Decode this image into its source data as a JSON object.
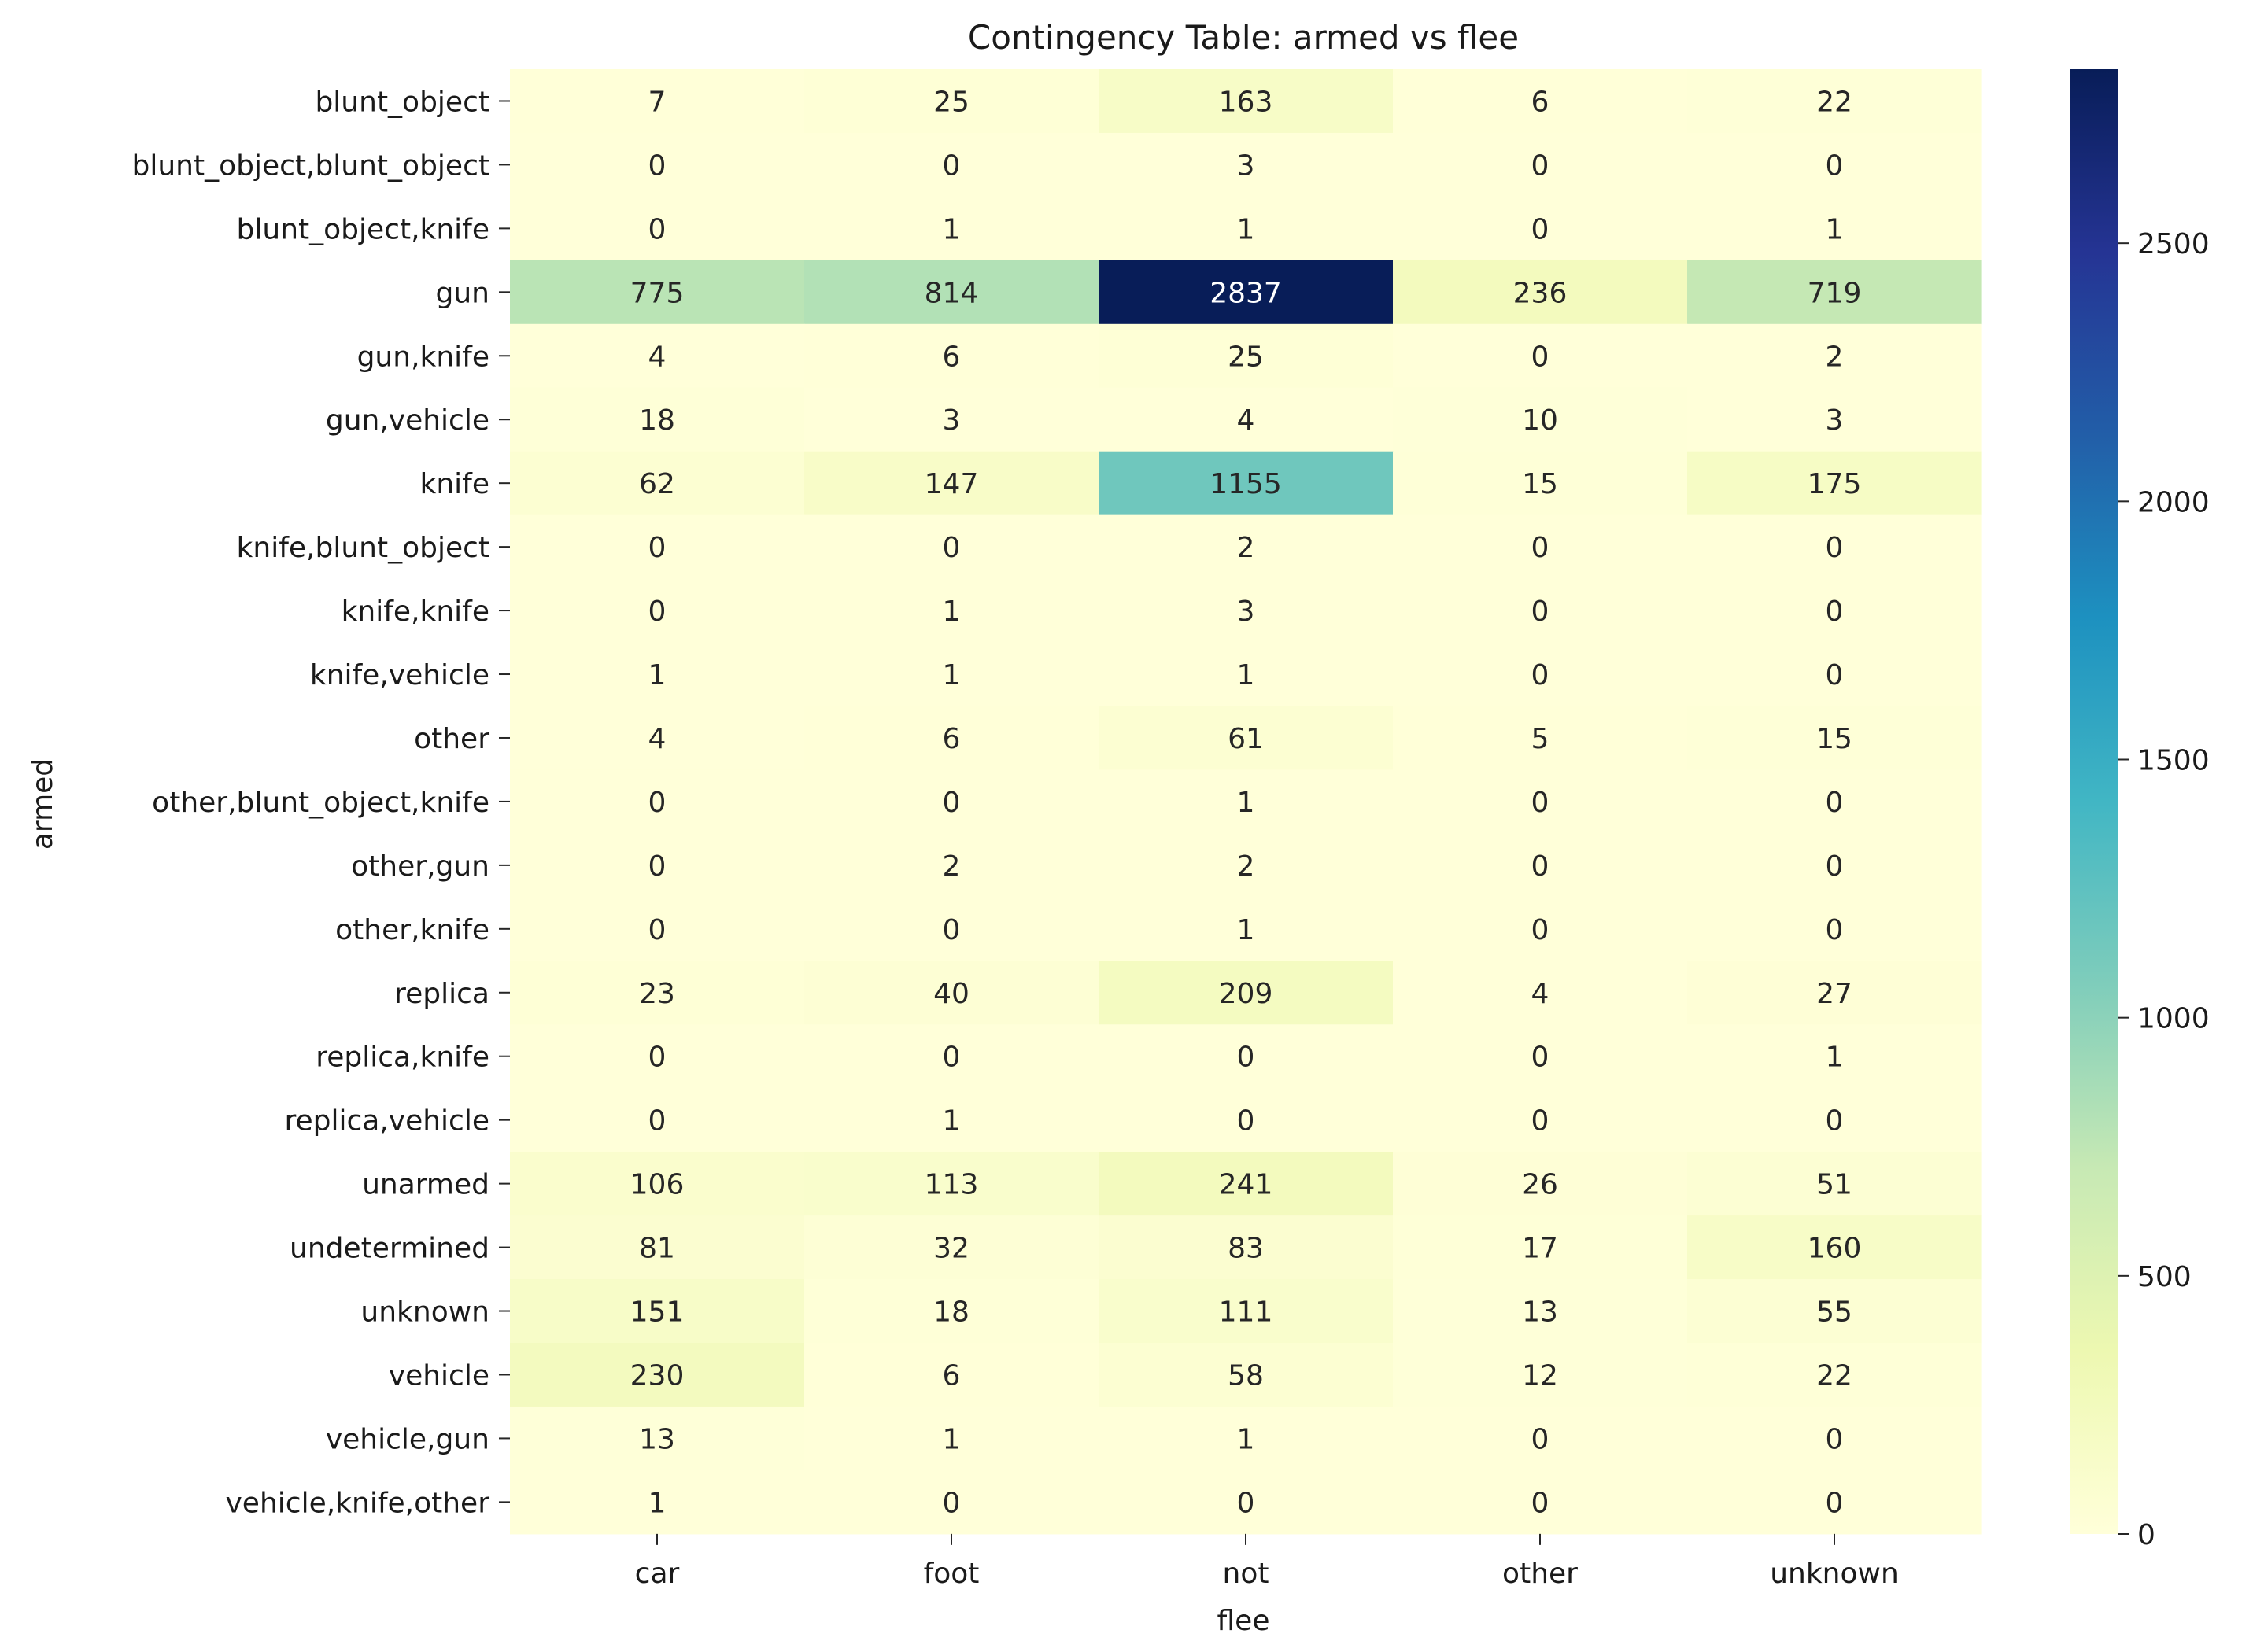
{
  "chart_data": {
    "type": "heatmap",
    "title": "Contingency Table: armed vs flee",
    "xlabel": "flee",
    "ylabel": "armed",
    "columns": [
      "car",
      "foot",
      "not",
      "other",
      "unknown"
    ],
    "rows": [
      "blunt_object",
      "blunt_object,blunt_object",
      "blunt_object,knife",
      "gun",
      "gun,knife",
      "gun,vehicle",
      "knife",
      "knife,blunt_object",
      "knife,knife",
      "knife,vehicle",
      "other",
      "other,blunt_object,knife",
      "other,gun",
      "other,knife",
      "replica",
      "replica,knife",
      "replica,vehicle",
      "unarmed",
      "undetermined",
      "unknown",
      "vehicle",
      "vehicle,gun",
      "vehicle,knife,other"
    ],
    "values": [
      [
        7,
        25,
        163,
        6,
        22
      ],
      [
        0,
        0,
        3,
        0,
        0
      ],
      [
        0,
        1,
        1,
        0,
        1
      ],
      [
        775,
        814,
        2837,
        236,
        719
      ],
      [
        4,
        6,
        25,
        0,
        2
      ],
      [
        18,
        3,
        4,
        10,
        3
      ],
      [
        62,
        147,
        1155,
        15,
        175
      ],
      [
        0,
        0,
        2,
        0,
        0
      ],
      [
        0,
        1,
        3,
        0,
        0
      ],
      [
        1,
        1,
        1,
        0,
        0
      ],
      [
        4,
        6,
        61,
        5,
        15
      ],
      [
        0,
        0,
        1,
        0,
        0
      ],
      [
        0,
        2,
        2,
        0,
        0
      ],
      [
        0,
        0,
        1,
        0,
        0
      ],
      [
        23,
        40,
        209,
        4,
        27
      ],
      [
        0,
        0,
        0,
        0,
        1
      ],
      [
        0,
        1,
        0,
        0,
        0
      ],
      [
        106,
        113,
        241,
        26,
        51
      ],
      [
        81,
        32,
        83,
        17,
        160
      ],
      [
        151,
        18,
        111,
        13,
        55
      ],
      [
        230,
        6,
        58,
        12,
        22
      ],
      [
        13,
        1,
        1,
        0,
        0
      ],
      [
        1,
        0,
        0,
        0,
        0
      ]
    ],
    "colormap": "YlGnBu",
    "vmin": 0,
    "vmax": 2837,
    "colorbar_ticks": [
      0,
      500,
      1000,
      1500,
      2000,
      2500
    ],
    "annotations": "cell values shown in each cell"
  }
}
